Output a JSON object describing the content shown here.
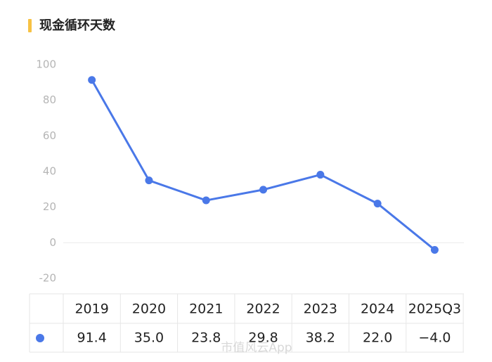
{
  "chart_data": {
    "type": "line",
    "title": "现金循环天数",
    "categories": [
      "2019",
      "2020",
      "2021",
      "2022",
      "2023",
      "2024",
      "2025Q3"
    ],
    "values": [
      91.4,
      35.0,
      23.8,
      29.8,
      38.2,
      22.0,
      -4.0
    ],
    "value_labels": [
      "91.4",
      "35.0",
      "23.8",
      "29.8",
      "38.2",
      "22.0",
      "−4.0"
    ],
    "color": "#4a78e8",
    "ylim": [
      -20,
      100
    ],
    "yticks": [
      -20,
      0,
      20,
      40,
      60,
      80,
      100
    ],
    "grid": false,
    "watermark": "市值风云App"
  }
}
